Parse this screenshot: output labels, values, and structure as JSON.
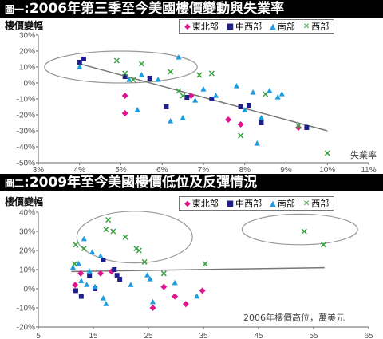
{
  "colors": {
    "east": "#e0148c",
    "midwest": "#1e1e8c",
    "south": "#1e9ce0",
    "west": "#38a040",
    "trend": "#777777"
  },
  "chart_data": [
    {
      "type": "scatter",
      "title_prefix": "圖一",
      "title": ":2006年第三季至今美國樓價變動與失業率",
      "ylabel": "樓價變幅",
      "xlabel": "失業率",
      "xlim": [
        3,
        11
      ],
      "ylim": [
        -50,
        30
      ],
      "x_ticks": [
        "3%",
        "4%",
        "5%",
        "6%",
        "7%",
        "8%",
        "9%",
        "10%",
        "11%"
      ],
      "y_ticks": [
        "30%",
        "20%",
        "10%",
        "0%",
        "-10%",
        "-20%",
        "-30%",
        "-40%",
        "-50%"
      ],
      "legend": [
        "東北部",
        "中西部",
        "南部",
        "西部"
      ],
      "trend": [
        [
          4,
          12
        ],
        [
          10,
          -30
        ]
      ],
      "ellipses": [
        {
          "cx": 5.0,
          "cy": 10,
          "rx": 1.85,
          "ry": 10
        }
      ],
      "series": [
        {
          "name": "東北部",
          "symbol": "diamond",
          "colorKey": "east",
          "points": [
            [
              5.1,
              -8
            ],
            [
              5.1,
              -19
            ],
            [
              6.7,
              -8
            ],
            [
              7.6,
              -23
            ],
            [
              7.9,
              -26
            ],
            [
              9.3,
              -28
            ]
          ]
        },
        {
          "name": "中西部",
          "symbol": "square",
          "colorKey": "midwest",
          "points": [
            [
              4.0,
              13
            ],
            [
              4.1,
              15
            ],
            [
              5.1,
              4
            ],
            [
              5.7,
              3
            ],
            [
              6.1,
              -15
            ],
            [
              6.6,
              -9
            ],
            [
              7.2,
              -10
            ],
            [
              7.9,
              -15
            ],
            [
              8.1,
              -14
            ],
            [
              8.4,
              -25
            ],
            [
              9.5,
              -28
            ]
          ]
        },
        {
          "name": "南部",
          "symbol": "triangle",
          "colorKey": "south",
          "points": [
            [
              4.0,
              10
            ],
            [
              5.2,
              2
            ],
            [
              5.4,
              -17
            ],
            [
              5.5,
              5
            ],
            [
              5.9,
              2
            ],
            [
              6.2,
              -24
            ],
            [
              6.4,
              16
            ],
            [
              6.5,
              -22
            ],
            [
              6.8,
              -11
            ],
            [
              7.0,
              -4
            ],
            [
              7.3,
              -8
            ],
            [
              7.8,
              -2
            ],
            [
              8.0,
              -17
            ],
            [
              8.2,
              -6
            ],
            [
              8.3,
              -38
            ],
            [
              8.4,
              -22
            ],
            [
              8.6,
              -5
            ],
            [
              8.8,
              -9
            ],
            [
              8.9,
              -7
            ]
          ]
        },
        {
          "name": "西部",
          "symbol": "x",
          "colorKey": "west",
          "points": [
            [
              4.9,
              14
            ],
            [
              5.1,
              6
            ],
            [
              5.3,
              2
            ],
            [
              5.5,
              12
            ],
            [
              6.2,
              7
            ],
            [
              6.4,
              -5
            ],
            [
              6.5,
              -8
            ],
            [
              6.9,
              5
            ],
            [
              7.2,
              6
            ],
            [
              7.9,
              -33
            ],
            [
              8.5,
              -7
            ],
            [
              9.3,
              -27
            ],
            [
              10.0,
              -44
            ]
          ]
        }
      ]
    },
    {
      "type": "scatter",
      "title_prefix": "圖二",
      "title": ":2009年至今美國樓價低位及反彈情況",
      "ylabel": "樓價變幅",
      "xlabel": "2006年樓價高位，萬美元",
      "xlim": [
        5,
        65
      ],
      "ylim": [
        -20,
        40
      ],
      "x_ticks": [
        "5",
        "15",
        "25",
        "35",
        "45",
        "55",
        "65"
      ],
      "y_ticks": [
        "40%",
        "30%",
        "20%",
        "10%",
        "0%",
        "-10%",
        "-20%"
      ],
      "legend": [
        "東北部",
        "中西部",
        "南部",
        "西部"
      ],
      "trend": [
        [
          11,
          9
        ],
        [
          57,
          11
        ]
      ],
      "ellipses": [
        {
          "cx": 22.5,
          "cy": 27,
          "rx": 10.5,
          "ry": 13.5
        },
        {
          "cx": 52.5,
          "cy": 31,
          "rx": 10.5,
          "ry": 8
        }
      ],
      "series": [
        {
          "name": "東北部",
          "symbol": "diamond",
          "colorKey": "east",
          "points": [
            [
              11.7,
              2
            ],
            [
              12.7,
              8
            ],
            [
              16.3,
              8
            ],
            [
              18.3,
              9
            ],
            [
              25.8,
              -10
            ],
            [
              27.8,
              1
            ],
            [
              29.8,
              -4
            ],
            [
              31.8,
              -8
            ],
            [
              34.8,
              -1
            ]
          ]
        },
        {
          "name": "中西部",
          "symbol": "square",
          "colorKey": "midwest",
          "points": [
            [
              11.8,
              -1
            ],
            [
              12.8,
              -4
            ],
            [
              14.3,
              7
            ],
            [
              15.3,
              0
            ],
            [
              16.8,
              15
            ],
            [
              18.8,
              10
            ],
            [
              19.3,
              7
            ],
            [
              19.8,
              5
            ]
          ]
        },
        {
          "name": "南部",
          "symbol": "triangle",
          "colorKey": "south",
          "points": [
            [
              11.3,
              11
            ],
            [
              12.3,
              13
            ],
            [
              12.8,
              4
            ],
            [
              13.3,
              26
            ],
            [
              13.8,
              2
            ],
            [
              14.3,
              9
            ],
            [
              14.8,
              19
            ],
            [
              15.3,
              1
            ],
            [
              16.3,
              17
            ],
            [
              16.8,
              -5
            ],
            [
              17.3,
              -8
            ],
            [
              21.8,
              2
            ],
            [
              24.8,
              7
            ],
            [
              25.3,
              5
            ],
            [
              25.8,
              -7
            ],
            [
              29.8,
              3
            ],
            [
              33.8,
              -4
            ]
          ]
        },
        {
          "name": "西部",
          "symbol": "x",
          "colorKey": "west",
          "points": [
            [
              11.6,
              13
            ],
            [
              11.8,
              23
            ],
            [
              13.3,
              21
            ],
            [
              17.3,
              31
            ],
            [
              17.7,
              36
            ],
            [
              18.6,
              30
            ],
            [
              20.8,
              27
            ],
            [
              22.8,
              21
            ],
            [
              23.3,
              20
            ],
            [
              24.3,
              14
            ],
            [
              27.8,
              8
            ],
            [
              35.3,
              13
            ],
            [
              53.3,
              30
            ],
            [
              56.8,
              23
            ]
          ]
        }
      ]
    }
  ]
}
